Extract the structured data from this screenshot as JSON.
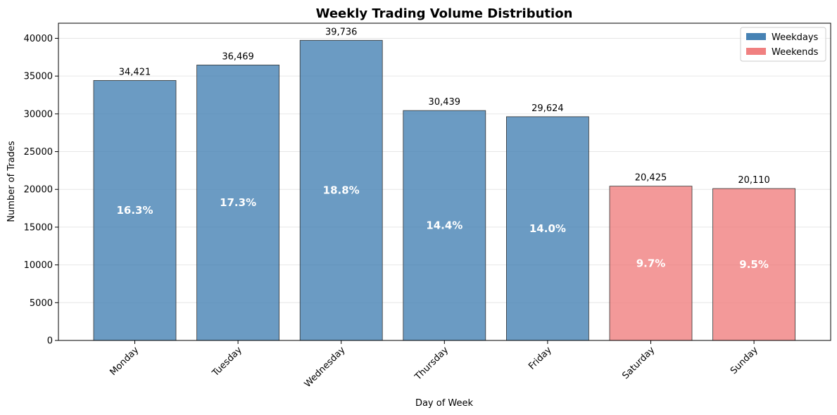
{
  "chart_data": {
    "type": "bar",
    "title": "Weekly Trading Volume Distribution",
    "xlabel": "Day of Week",
    "ylabel": "Number of Trades",
    "categories": [
      "Monday",
      "Tuesday",
      "Wednesday",
      "Thursday",
      "Friday",
      "Saturday",
      "Sunday"
    ],
    "values": [
      34421,
      36469,
      39736,
      30439,
      29624,
      20425,
      20110
    ],
    "value_labels": [
      "34,421",
      "36,469",
      "39,736",
      "30,439",
      "29,624",
      "20,425",
      "20,110"
    ],
    "percent_labels": [
      "16.3%",
      "17.3%",
      "18.8%",
      "14.4%",
      "14.0%",
      "9.7%",
      "9.5%"
    ],
    "groups": [
      "Weekdays",
      "Weekdays",
      "Weekdays",
      "Weekdays",
      "Weekdays",
      "Weekends",
      "Weekends"
    ],
    "ylim": [
      0,
      42000
    ],
    "yticks": [
      0,
      5000,
      10000,
      15000,
      20000,
      25000,
      30000,
      35000,
      40000
    ],
    "grid": true,
    "legend": {
      "placement": "top-right",
      "entries": [
        {
          "label": "Weekdays",
          "color": "#4682b4"
        },
        {
          "label": "Weekends",
          "color": "#f08080"
        }
      ]
    },
    "colors": {
      "Weekdays": "#4682b4",
      "Weekends": "#f08080"
    },
    "bar_opacity": 0.8
  }
}
